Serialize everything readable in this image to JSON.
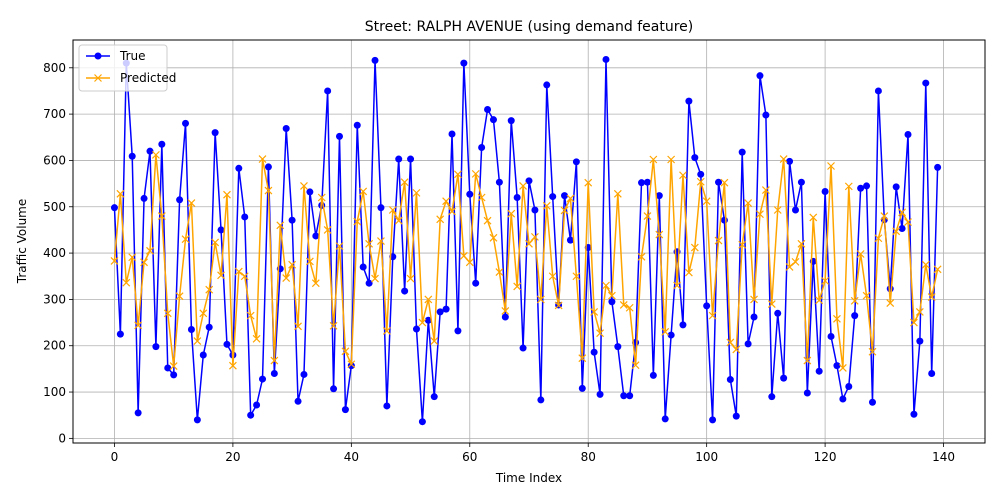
{
  "chart_data": {
    "type": "line",
    "title": "Street: RALPH AVENUE (using demand feature)",
    "xlabel": "Time Index",
    "ylabel": "Traffic Volume",
    "xlim": [
      -7,
      147
    ],
    "ylim": [
      -10,
      860
    ],
    "xticks": [
      0,
      20,
      40,
      60,
      80,
      100,
      120,
      140
    ],
    "yticks": [
      0,
      100,
      200,
      300,
      400,
      500,
      600,
      700,
      800
    ],
    "grid": true,
    "legend": "top-left",
    "series": [
      {
        "name": "True",
        "color": "#0000ff",
        "marker": "circle",
        "values": [
          498,
          225,
          810,
          609,
          55,
          518,
          620,
          198,
          635,
          152,
          137,
          515,
          680,
          235,
          40,
          180,
          240,
          660,
          450,
          203,
          180,
          583,
          478,
          50,
          72,
          128,
          586,
          140,
          366,
          669,
          471,
          80,
          138,
          532,
          437,
          503,
          750,
          107,
          652,
          62,
          157,
          676,
          370,
          335,
          816,
          498,
          70,
          392,
          603,
          318,
          603,
          236,
          36,
          255,
          90,
          273,
          279,
          657,
          232,
          810,
          527,
          335,
          628,
          710,
          688,
          553,
          262,
          686,
          520,
          195,
          556,
          493,
          83,
          763,
          522,
          288,
          524,
          428,
          597,
          108,
          412,
          186,
          95,
          818,
          295,
          198,
          92,
          92,
          207,
          552,
          553,
          136,
          524,
          42,
          223,
          403,
          245,
          728,
          606,
          570,
          286,
          40,
          553,
          471,
          127,
          48,
          618,
          204,
          262,
          783,
          698,
          90,
          270,
          130,
          598,
          493,
          553,
          98,
          382,
          145,
          533,
          220,
          157,
          85,
          112,
          265,
          540,
          545,
          78,
          750,
          472,
          323,
          543,
          453,
          656,
          52,
          210,
          767,
          140,
          585
        ]
      },
      {
        "name": "Predicted",
        "color": "#ffa500",
        "marker": "x",
        "values": [
          383,
          528,
          336,
          391,
          244,
          380,
          405,
          612,
          480,
          270,
          156,
          307,
          430,
          508,
          210,
          270,
          321,
          423,
          352,
          526,
          157,
          360,
          350,
          265,
          215,
          603,
          535,
          168,
          460,
          346,
          375,
          242,
          545,
          382,
          335,
          520,
          450,
          243,
          415,
          188,
          160,
          468,
          533,
          420,
          345,
          426,
          232,
          493,
          470,
          553,
          345,
          530,
          250,
          300,
          210,
          473,
          512,
          490,
          570,
          394,
          380,
          571,
          520,
          470,
          433,
          359,
          275,
          485,
          328,
          545,
          420,
          435,
          300,
          502,
          350,
          287,
          492,
          518,
          350,
          173,
          552,
          273,
          227,
          330,
          308,
          528,
          288,
          282,
          158,
          392,
          480,
          602,
          440,
          230,
          602,
          330,
          568,
          358,
          412,
          554,
          512,
          265,
          427,
          552,
          207,
          192,
          418,
          508,
          300,
          484,
          536,
          290,
          493,
          603,
          370,
          381,
          420,
          168,
          477,
          298,
          340,
          588,
          258,
          152,
          544,
          297,
          398,
          308,
          187,
          432,
          480,
          292,
          447,
          488,
          467,
          250,
          273,
          375,
          305,
          365
        ]
      }
    ]
  }
}
